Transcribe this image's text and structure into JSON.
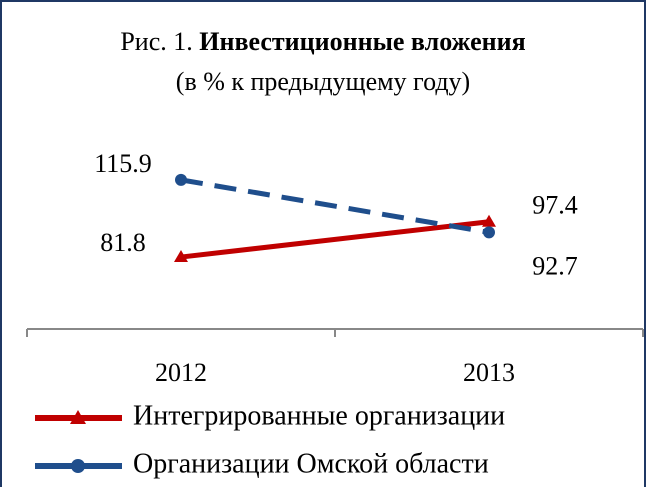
{
  "chart_data": {
    "type": "line",
    "figure_label": "Рис. 1.",
    "title": "Инвестиционные вложения",
    "subtitle": "(в % к предыдущему году)",
    "categories": [
      "2012",
      "2013"
    ],
    "series": [
      {
        "name": "Интегрированные организации",
        "color": "#c00000",
        "marker": "triangle",
        "dashed": false,
        "values": [
          81.8,
          97.4
        ]
      },
      {
        "name": "Организации Омской области",
        "color": "#1f4e8c",
        "marker": "circle",
        "dashed": true,
        "values": [
          115.9,
          92.7
        ]
      }
    ],
    "ylim": [
      50,
      130
    ],
    "legend": "bottom"
  }
}
